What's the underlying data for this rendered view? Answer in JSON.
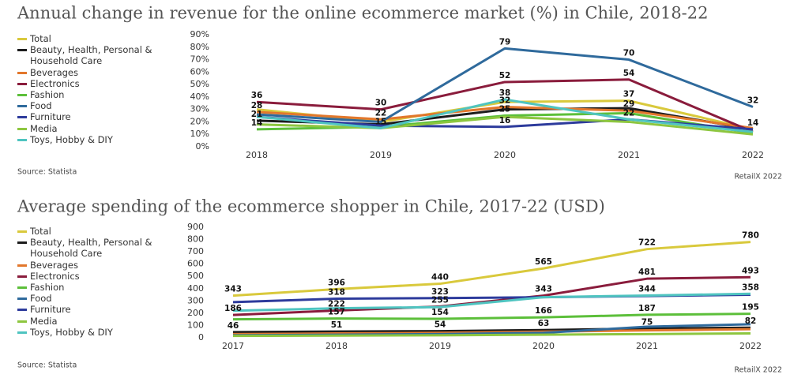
{
  "chart_data": [
    {
      "type": "line",
      "title": "Annual change in revenue for the online ecommerce market (%) in Chile, 2018-22",
      "categories": [
        "2018",
        "2019",
        "2020",
        "2021",
        "2022"
      ],
      "ylim": [
        0,
        90
      ],
      "yticks": [
        {
          "value": 0,
          "label": "0%"
        },
        {
          "value": 10,
          "label": "10%"
        },
        {
          "value": 20,
          "label": "20%"
        },
        {
          "value": 30,
          "label": "30%"
        },
        {
          "value": 40,
          "label": "40%"
        },
        {
          "value": 50,
          "label": "50%"
        },
        {
          "value": 60,
          "label": "60%"
        },
        {
          "value": 70,
          "label": "70%"
        },
        {
          "value": 80,
          "label": "80%"
        },
        {
          "value": 90,
          "label": "90%"
        }
      ],
      "source": "Source: Statista",
      "credit": "RetailX 2022",
      "series": [
        {
          "name": "Total",
          "color": "#d9c93c",
          "values": [
            30,
            20,
            36,
            37,
            14
          ],
          "value_labels": [
            null,
            null,
            null,
            "37",
            null
          ]
        },
        {
          "name": "Beauty, Health, Personal & Household Care",
          "color": "#1c1c1c",
          "values": [
            21,
            18,
            30,
            31,
            14
          ],
          "value_labels": [
            "21",
            null,
            null,
            null,
            "14"
          ]
        },
        {
          "name": "Beverages",
          "color": "#e2772c",
          "values": [
            28,
            22,
            32,
            29,
            15
          ],
          "value_labels": [
            "28",
            "22",
            "32",
            "29",
            null
          ]
        },
        {
          "name": "Electronics",
          "color": "#8a1c3c",
          "values": [
            36,
            30,
            52,
            54,
            12
          ],
          "value_labels": [
            "36",
            "30",
            "52",
            "54",
            null
          ]
        },
        {
          "name": "Fashion",
          "color": "#5cbf3a",
          "values": [
            14,
            16,
            25,
            27,
            11
          ],
          "value_labels": [
            "14",
            null,
            "25",
            null,
            null
          ]
        },
        {
          "name": "Food",
          "color": "#2f6a9c",
          "values": [
            26,
            20,
            79,
            70,
            32
          ],
          "value_labels": [
            null,
            null,
            "79",
            "70",
            "32"
          ]
        },
        {
          "name": "Furniture",
          "color": "#2d3b9c",
          "values": [
            24,
            17,
            16,
            22,
            14
          ],
          "value_labels": [
            null,
            null,
            "16",
            null,
            null
          ]
        },
        {
          "name": "Media",
          "color": "#8dc63f",
          "values": [
            18,
            15,
            24,
            20,
            10
          ],
          "value_labels": [
            null,
            null,
            null,
            null,
            null
          ]
        },
        {
          "name": "Toys, Hobby & DIY",
          "color": "#4fc4c0",
          "values": [
            24,
            15,
            38,
            22,
            12
          ],
          "value_labels": [
            null,
            "15",
            "38",
            "22",
            null
          ]
        }
      ]
    },
    {
      "type": "line",
      "title": "Average spending of the ecommerce shopper in Chile, 2017-22 (USD)",
      "categories": [
        "2017",
        "2018",
        "2019",
        "2020",
        "2021",
        "2022"
      ],
      "ylim": [
        0,
        900
      ],
      "yticks": [
        0,
        100,
        200,
        300,
        400,
        500,
        600,
        700,
        800,
        900
      ],
      "source": "Source: Statista",
      "credit": "RetailX 2022",
      "series": [
        {
          "name": "Total",
          "color": "#d9c93c",
          "values": [
            343,
            396,
            440,
            565,
            722,
            780
          ],
          "value_labels": [
            "343",
            "396",
            "440",
            "565",
            "722",
            "780"
          ]
        },
        {
          "name": "Beauty, Health, Personal & Household Care",
          "color": "#1c1c1c",
          "values": [
            46,
            51,
            54,
            63,
            75,
            82
          ],
          "value_labels": [
            "46",
            "51",
            "54",
            "63",
            "75",
            "82"
          ]
        },
        {
          "name": "Beverages",
          "color": "#e2772c",
          "values": [
            30,
            35,
            40,
            50,
            60,
            70
          ],
          "value_labels": [
            null,
            null,
            null,
            null,
            null,
            null
          ]
        },
        {
          "name": "Electronics",
          "color": "#8a1c3c",
          "values": [
            186,
            222,
            255,
            343,
            481,
            493
          ],
          "value_labels": [
            "186",
            "222",
            "255",
            "343",
            "481",
            "493"
          ]
        },
        {
          "name": "Fashion",
          "color": "#5cbf3a",
          "values": [
            150,
            157,
            154,
            166,
            187,
            195
          ],
          "value_labels": [
            null,
            "157",
            "154",
            "166",
            "187",
            "195"
          ]
        },
        {
          "name": "Food",
          "color": "#2f6a9c",
          "values": [
            20,
            25,
            30,
            40,
            90,
            110
          ],
          "value_labels": [
            null,
            null,
            null,
            null,
            null,
            null
          ]
        },
        {
          "name": "Furniture",
          "color": "#2d3b9c",
          "values": [
            290,
            318,
            323,
            330,
            340,
            350
          ],
          "value_labels": [
            null,
            "318",
            "323",
            null,
            null,
            null
          ]
        },
        {
          "name": "Media",
          "color": "#8dc63f",
          "values": [
            15,
            18,
            20,
            25,
            30,
            35
          ],
          "value_labels": [
            null,
            null,
            null,
            null,
            null,
            null
          ]
        },
        {
          "name": "Toys, Hobby & DIY",
          "color": "#4fc4c0",
          "values": [
            220,
            240,
            250,
            330,
            344,
            358
          ],
          "value_labels": [
            null,
            null,
            null,
            null,
            "344",
            "358"
          ]
        }
      ]
    }
  ]
}
